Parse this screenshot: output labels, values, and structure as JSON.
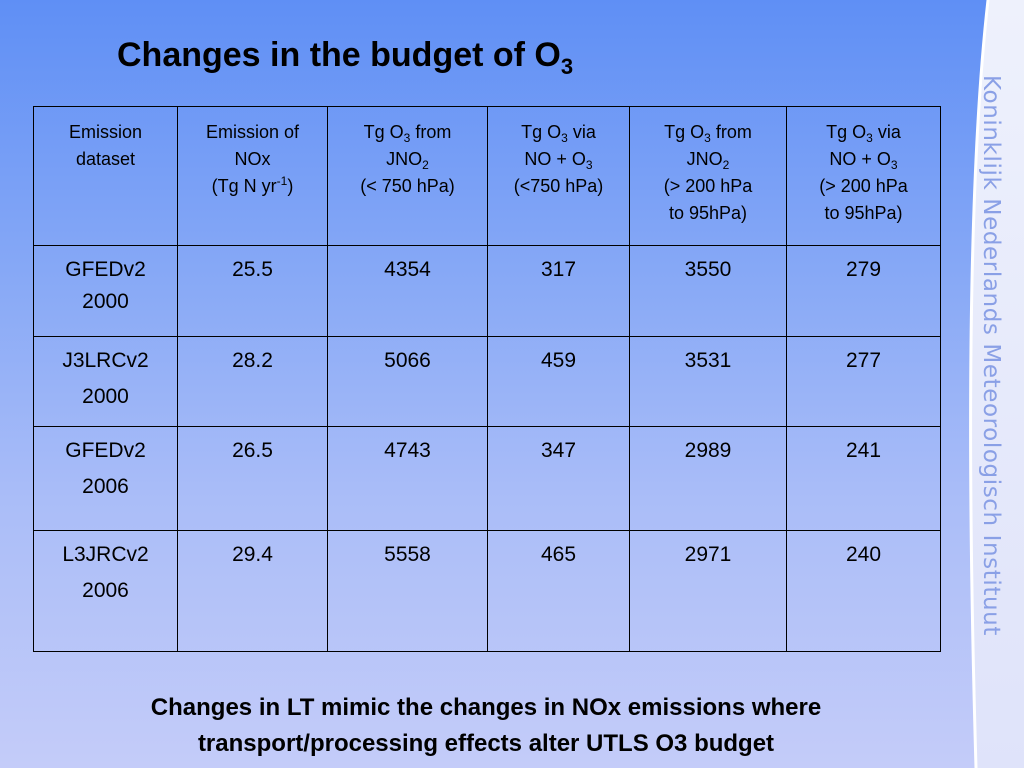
{
  "slide": {
    "title_main": "Changes in the budget of O",
    "title_sub": "3",
    "side_text": "Koninklijk Nederlands Meteorologisch Instituut",
    "colors": {
      "background_top": "#5f8ff5",
      "background_bottom": "#c4ccf9",
      "side_text": "#8aa0e6"
    }
  },
  "table": {
    "headers": [
      {
        "lines": [
          "Emission",
          "dataset"
        ]
      },
      {
        "lines": [
          "Emission of",
          "NOx",
          "(Tg N yr-1)"
        ]
      },
      {
        "lines": [
          "Tg O3 from",
          "JNO2",
          "(< 750 hPa)"
        ]
      },
      {
        "lines": [
          "Tg O3 via",
          "NO + O3",
          "(<750 hPa)"
        ]
      },
      {
        "lines": [
          "Tg O3 from",
          "JNO2",
          "(> 200 hPa",
          "to 95hPa)"
        ]
      },
      {
        "lines": [
          "Tg O3 via",
          "NO + O3",
          "(> 200 hPa",
          "to 95hPa)"
        ]
      }
    ],
    "rows": [
      {
        "dataset": "GFEDv2",
        "year": "2000",
        "nox": "25.5",
        "jno2_lt": "4354",
        "no_o3_lt": "317",
        "jno2_utls": "3550",
        "no_o3_utls": "279"
      },
      {
        "dataset": "J3LRCv2",
        "year": "2000",
        "nox": "28.2",
        "jno2_lt": "5066",
        "no_o3_lt": "459",
        "jno2_utls": "3531",
        "no_o3_utls": "277"
      },
      {
        "dataset": "GFEDv2",
        "year": "2006",
        "nox": "26.5",
        "jno2_lt": "4743",
        "no_o3_lt": "347",
        "jno2_utls": "2989",
        "no_o3_utls": "241"
      },
      {
        "dataset": "L3JRCv2",
        "year": "2006",
        "nox": "29.4",
        "jno2_lt": "5558",
        "no_o3_lt": "465",
        "jno2_utls": "2971",
        "no_o3_utls": "240"
      }
    ]
  },
  "footer": {
    "line1": "Changes in LT mimic the changes in NOx emissions where",
    "line2": "transport/processing effects alter UTLS O3 budget"
  }
}
